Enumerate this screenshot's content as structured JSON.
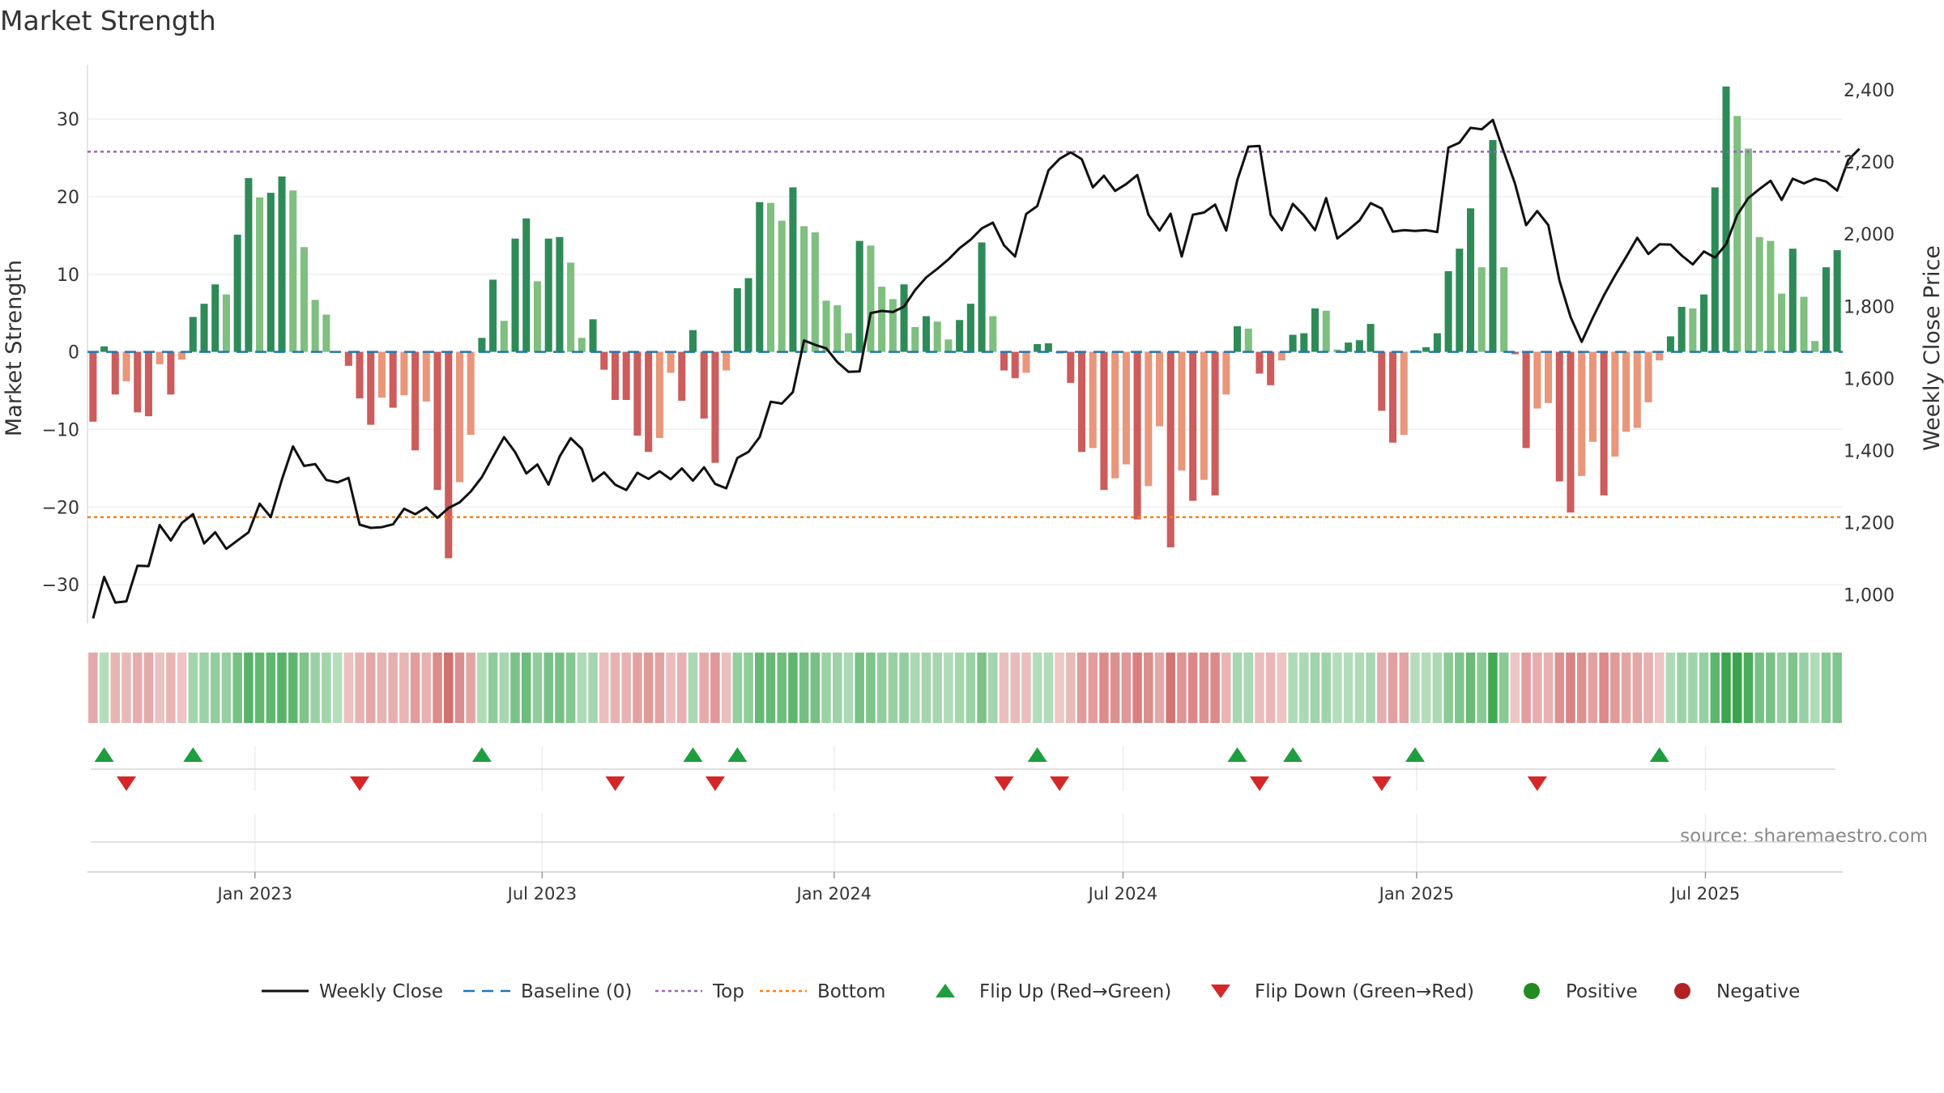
{
  "chart_data": {
    "type": "bar+line",
    "title": "Market Strength",
    "ylabel_left": "Market Strength",
    "ylabel_right": "Weekly Close Price",
    "source": "source: sharemaestro.com",
    "left_ylim": [
      -35,
      37
    ],
    "right_ylim": [
      920,
      2470
    ],
    "left_ticks": [
      "30",
      "20",
      "10",
      "0",
      "−10",
      "−20",
      "−30"
    ],
    "left_tick_values": [
      30,
      20,
      10,
      0,
      -10,
      -20,
      -30
    ],
    "right_ticks": [
      "2,400",
      "2,200",
      "2,000",
      "1,800",
      "1,600",
      "1,400",
      "1,200",
      "1,000"
    ],
    "right_tick_values": [
      2400,
      2200,
      2000,
      1800,
      1600,
      1400,
      1200,
      1000
    ],
    "x_ticks": [
      "Jan 2023",
      "Jul 2023",
      "Jan 2024",
      "Jul 2024",
      "Jan 2025",
      "Jul 2025"
    ],
    "x_tick_index": [
      14.57,
      40.43,
      66.71,
      92.71,
      119.14,
      145.14
    ],
    "top_threshold": 25.8,
    "bottom_threshold": -21.3,
    "strength": [
      -9,
      0.7,
      -5.5,
      -3.8,
      -7.8,
      -8.3,
      -1.6,
      -5.5,
      -1,
      4.5,
      6.2,
      8.7,
      7.4,
      15.1,
      22.4,
      19.9,
      20.5,
      22.6,
      20.8,
      13.5,
      6.7,
      4.8,
      0,
      -1.8,
      -6,
      -9.4,
      -5.9,
      -7.2,
      -5.6,
      -12.7,
      -6.4,
      -17.8,
      -26.6,
      -16.8,
      -10.7,
      1.8,
      9.3,
      4,
      14.6,
      17.2,
      9.1,
      14.6,
      14.8,
      11.5,
      1.8,
      4.2,
      -2.3,
      -6.2,
      -6.2,
      -10.8,
      -12.9,
      -11.1,
      -2.7,
      -6.3,
      2.8,
      -8.6,
      -14.3,
      -2.4,
      8.2,
      9.5,
      19.3,
      19.2,
      16.9,
      21.2,
      16.2,
      15.4,
      6.6,
      6,
      2.4,
      14.3,
      13.7,
      8.4,
      6.8,
      8.7,
      3.2,
      4.6,
      3.9,
      1.6,
      4.1,
      6.2,
      14.1,
      4.6,
      -2.4,
      -3.4,
      -2.7,
      1,
      1.1,
      -0.2,
      -4,
      -12.9,
      -12.4,
      -17.8,
      -16.3,
      -14.5,
      -21.6,
      -17.3,
      -9.6,
      -25.2,
      -15.3,
      -19.2,
      -16.5,
      -18.5,
      -5.5,
      3.3,
      3,
      -2.8,
      -4.3,
      -1.1,
      2.2,
      2.4,
      5.6,
      5.3,
      0.3,
      1.2,
      1.5,
      3.6,
      -7.6,
      -11.7,
      -10.7,
      0.2,
      0.6,
      2.4,
      10.4,
      13.3,
      18.5,
      10.9,
      27.3,
      10.9,
      -0.3,
      -12.4,
      -7.3,
      -6.6,
      -16.7,
      -20.7,
      -16,
      -11.6,
      -18.5,
      -13.5,
      -10.3,
      -9.8,
      -6.5,
      -1.1,
      2,
      5.8,
      5.6,
      7.4,
      21.2,
      34.2,
      30.4,
      26.2,
      14.8,
      14.3,
      7.5,
      13.3,
      7.1,
      1.4,
      10.9,
      13.1
    ],
    "close": [
      934,
      1049,
      978,
      981,
      1080,
      1079,
      1193,
      1150,
      1199,
      1223,
      1142,
      1173,
      1127,
      1150,
      1173,
      1252,
      1215,
      1319,
      1411,
      1357,
      1362,
      1318,
      1311,
      1324,
      1194,
      1185,
      1187,
      1195,
      1238,
      1223,
      1242,
      1213,
      1240,
      1256,
      1286,
      1326,
      1382,
      1437,
      1395,
      1336,
      1361,
      1305,
      1383,
      1434,
      1404,
      1315,
      1339,
      1305,
      1290,
      1338,
      1321,
      1342,
      1320,
      1350,
      1316,
      1353,
      1307,
      1295,
      1379,
      1396,
      1437,
      1535,
      1530,
      1562,
      1705,
      1693,
      1683,
      1645,
      1618,
      1619,
      1781,
      1787,
      1784,
      1799,
      1845,
      1880,
      1904,
      1930,
      1961,
      1985,
      2016,
      2032,
      1969,
      1938,
      2056,
      2078,
      2177,
      2209,
      2227,
      2208,
      2130,
      2162,
      2120,
      2139,
      2164,
      2054,
      2010,
      2057,
      1938,
      2054,
      2060,
      2082,
      2010,
      2150,
      2243,
      2245,
      2054,
      2011,
      2084,
      2052,
      2011,
      2100,
      1988,
      2012,
      2038,
      2086,
      2071,
      2007,
      2011,
      2009,
      2011,
      2006,
      2240,
      2254,
      2295,
      2291,
      2317,
      2227,
      2140,
      2025,
      2064,
      2025,
      1871,
      1770,
      1701,
      1768,
      1830,
      1885,
      1937,
      1990,
      1945,
      1972,
      1971,
      1941,
      1916,
      1952,
      1935,
      1972,
      2053,
      2100,
      2125,
      2148,
      2095,
      2154,
      2141,
      2154,
      2146,
      2121,
      2206,
      2237
    ],
    "status": [
      "R",
      "G",
      "R",
      "R",
      "R",
      "R",
      "R",
      "R",
      "R",
      "G",
      "G",
      "G",
      "G",
      "G",
      "G",
      "G",
      "G",
      "G",
      "G",
      "G",
      "G",
      "G",
      "G",
      "R",
      "R",
      "R",
      "R",
      "R",
      "R",
      "R",
      "R",
      "R",
      "R",
      "R",
      "R",
      "G",
      "G",
      "G",
      "G",
      "G",
      "G",
      "G",
      "G",
      "G",
      "G",
      "G",
      "R",
      "R",
      "R",
      "R",
      "R",
      "R",
      "R",
      "R",
      "G",
      "R",
      "R",
      "R",
      "G",
      "G",
      "G",
      "G",
      "G",
      "G",
      "G",
      "G",
      "G",
      "G",
      "G",
      "G",
      "G",
      "G",
      "G",
      "G",
      "G",
      "G",
      "G",
      "G",
      "G",
      "G",
      "G",
      "G",
      "R",
      "R",
      "R",
      "G",
      "G",
      "G",
      "R",
      "R",
      "R",
      "R",
      "R",
      "R",
      "R",
      "R",
      "R",
      "R",
      "R",
      "R",
      "R",
      "R",
      "R",
      "G",
      "G",
      "R",
      "R",
      "R",
      "G",
      "G",
      "G",
      "G",
      "G",
      "G",
      "G",
      "G",
      "R",
      "R",
      "R",
      "G",
      "G",
      "G",
      "G",
      "G",
      "G",
      "G",
      "G",
      "G",
      "R",
      "R",
      "R",
      "R",
      "R",
      "R",
      "R",
      "R",
      "R",
      "R",
      "R",
      "R",
      "R",
      "R",
      "G",
      "G",
      "G",
      "G",
      "G",
      "G",
      "G",
      "G",
      "G",
      "G",
      "G",
      "G",
      "G",
      "G",
      "G",
      "G"
    ],
    "flip_up_index": [
      1,
      9,
      35,
      54,
      58,
      85,
      103,
      108,
      119,
      141
    ],
    "flip_down_index": [
      3,
      24,
      47,
      56,
      82,
      87,
      105,
      116,
      130
    ],
    "series_colors": {
      "pos_strong": "#2e8b57",
      "pos_weak": "#7fbf7f",
      "neg_strong": "#cd5c5c",
      "neg_weak": "#e9967a",
      "close_line": "#111111",
      "baseline": "#1f77b4",
      "top": "#9467bd",
      "bottom": "#ff7f0e",
      "flip_up": "#1e9e3e",
      "flip_down": "#d62728"
    },
    "legend": [
      {
        "label": "Weekly Close",
        "kind": "line",
        "color": "#111111"
      },
      {
        "label": "Baseline (0)",
        "kind": "dash",
        "color": "#1f77b4"
      },
      {
        "label": "Top",
        "kind": "dot",
        "color": "#9467bd"
      },
      {
        "label": "Bottom",
        "kind": "dot",
        "color": "#ff7f0e"
      },
      {
        "label": "Flip Up (Red→Green)",
        "kind": "tri-up",
        "color": "#1e9e3e"
      },
      {
        "label": "Flip Down (Green→Red)",
        "kind": "tri-down",
        "color": "#d62728"
      },
      {
        "label": "Positive",
        "kind": "circle",
        "color": "#228b22"
      },
      {
        "label": "Negative",
        "kind": "circle",
        "color": "#b22222"
      }
    ]
  }
}
